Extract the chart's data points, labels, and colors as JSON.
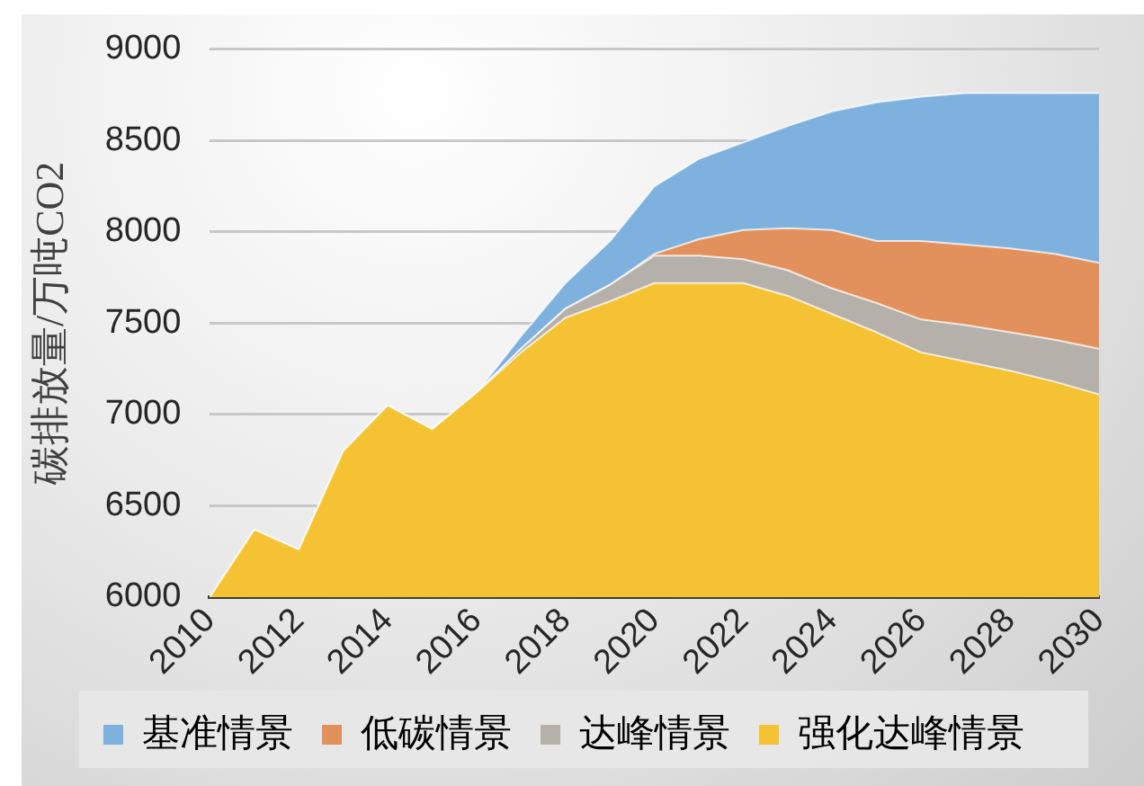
{
  "chart_data": {
    "type": "area",
    "ylabel": "碳排放量/万吨CO2",
    "x": [
      2010,
      2011,
      2012,
      2013,
      2014,
      2015,
      2016,
      2017,
      2018,
      2019,
      2020,
      2021,
      2022,
      2023,
      2024,
      2025,
      2026,
      2027,
      2028,
      2029,
      2030
    ],
    "xlim": [
      2010,
      2030
    ],
    "xticks": [
      2010,
      2012,
      2014,
      2016,
      2018,
      2020,
      2022,
      2024,
      2026,
      2028,
      2030
    ],
    "ylim": [
      6000,
      9000
    ],
    "yticks": [
      6000,
      6500,
      7000,
      7500,
      8000,
      8500,
      9000
    ],
    "grid": "y",
    "legend": "bottom",
    "series": [
      {
        "name": "基准情景",
        "color": "#7fb1df",
        "values": [
          6000,
          6370,
          6260,
          6800,
          7050,
          6920,
          7120,
          7430,
          7720,
          7950,
          8250,
          8400,
          8490,
          8580,
          8660,
          8710,
          8740,
          8760,
          8760,
          8760,
          8760
        ]
      },
      {
        "name": "低碳情景",
        "color": "#e3915c",
        "values": [
          6000,
          6370,
          6260,
          6800,
          7050,
          6920,
          7120,
          7360,
          7580,
          7710,
          7880,
          7960,
          8010,
          8020,
          8010,
          7950,
          7950,
          7930,
          7910,
          7880,
          7830
        ]
      },
      {
        "name": "达峰情景",
        "color": "#b5b0aa",
        "values": [
          6000,
          6370,
          6260,
          6800,
          7050,
          6920,
          7120,
          7360,
          7580,
          7710,
          7870,
          7870,
          7850,
          7790,
          7690,
          7610,
          7520,
          7490,
          7450,
          7410,
          7360
        ]
      },
      {
        "name": "强化达峰情景",
        "color": "#f4c232",
        "values": [
          6000,
          6370,
          6260,
          6800,
          7050,
          6920,
          7120,
          7340,
          7530,
          7620,
          7720,
          7720,
          7720,
          7650,
          7550,
          7450,
          7340,
          7290,
          7240,
          7180,
          7110
        ]
      }
    ]
  }
}
